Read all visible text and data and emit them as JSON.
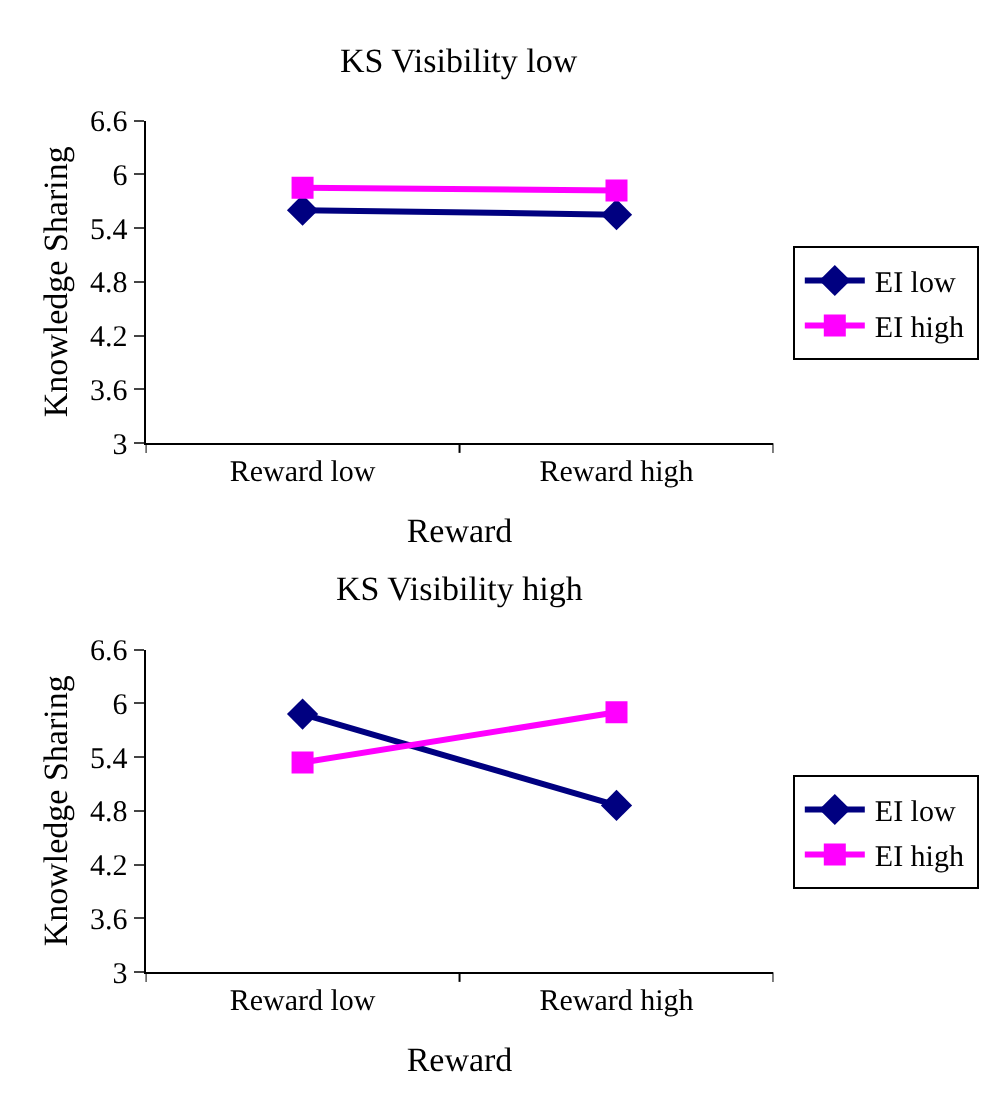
{
  "chart_data": [
    {
      "type": "line",
      "title": "KS Visibility low",
      "xlabel": "Reward",
      "ylabel": "Knowledge Sharing",
      "categories": [
        "Reward low",
        "Reward high"
      ],
      "ylim": [
        3,
        6.6
      ],
      "yticks": [
        3,
        3.6,
        4.2,
        4.8,
        5.4,
        6,
        6.6
      ],
      "legend": "right",
      "series": [
        {
          "name": "EI low",
          "color": "#000080",
          "marker": "diamond",
          "values": [
            5.6,
            5.55
          ]
        },
        {
          "name": "EI high",
          "color": "#ff00ff",
          "marker": "square",
          "values": [
            5.85,
            5.82
          ]
        }
      ]
    },
    {
      "type": "line",
      "title": "KS Visibility high",
      "xlabel": "Reward",
      "ylabel": "Knowledge Sharing",
      "categories": [
        "Reward low",
        "Reward high"
      ],
      "ylim": [
        3,
        6.6
      ],
      "yticks": [
        3,
        3.6,
        4.2,
        4.8,
        5.4,
        6,
        6.6
      ],
      "legend": "right",
      "series": [
        {
          "name": "EI low",
          "color": "#000080",
          "marker": "diamond",
          "values": [
            5.88,
            4.86
          ]
        },
        {
          "name": "EI high",
          "color": "#ff00ff",
          "marker": "square",
          "values": [
            5.34,
            5.9
          ]
        }
      ]
    }
  ]
}
